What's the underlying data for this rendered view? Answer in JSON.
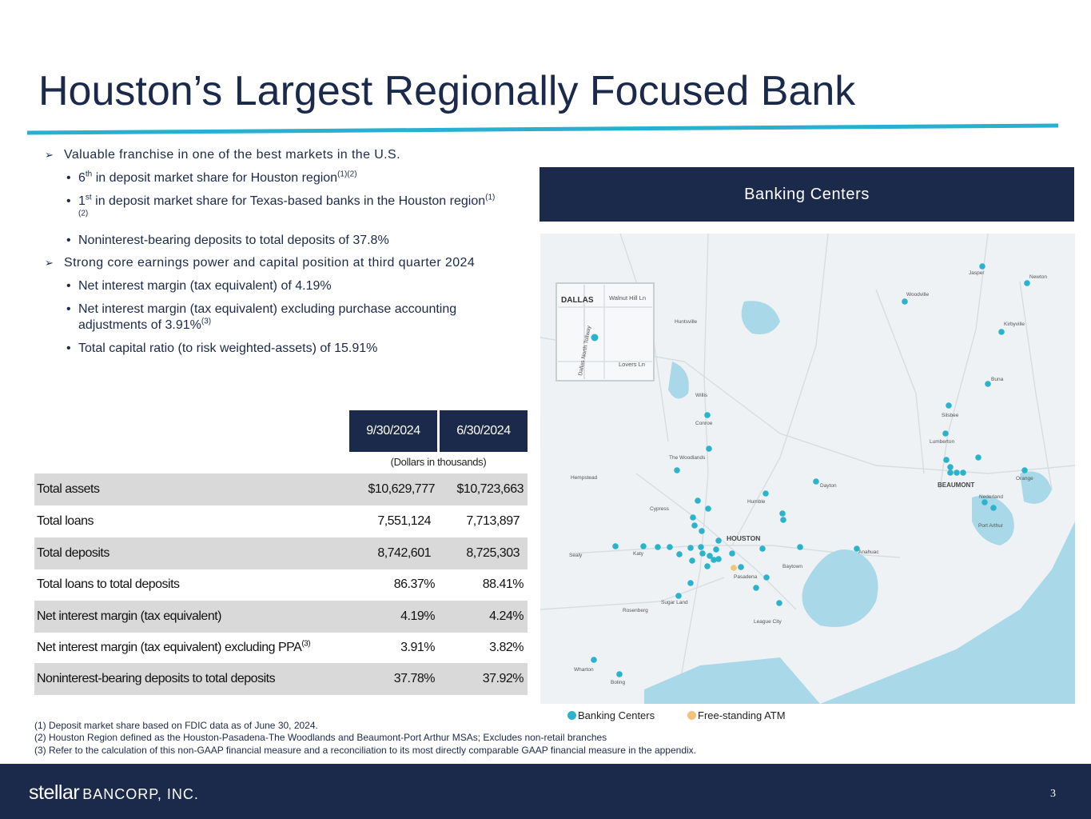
{
  "title": "Houston’s Largest Regionally Focused Bank",
  "bullets": [
    {
      "text": "Valuable franchise in one of the best markets in the U.S.",
      "subs": [
        {
          "pre": "6",
          "presup": "th",
          "text": " in deposit market share for Houston region",
          "sup": "(1)(2)"
        },
        {
          "pre": "1",
          "presup": "st",
          "text": " in deposit market share for Texas-based banks in the Houston region",
          "sup": "(1)(2)"
        },
        {
          "pre": "",
          "presup": "",
          "text": "Noninterest-bearing deposits to total deposits of 37.8%",
          "sup": ""
        }
      ]
    },
    {
      "text": "Strong core earnings power and capital position at third quarter 2024",
      "subs": [
        {
          "pre": "",
          "presup": "",
          "text": "Net interest margin (tax equivalent) of 4.19%",
          "sup": ""
        },
        {
          "pre": "",
          "presup": "",
          "text": "Net interest margin (tax equivalent) excluding purchase accounting adjustments of 3.91%",
          "sup": "(3)"
        },
        {
          "pre": "",
          "presup": "",
          "text": "Total capital ratio (to risk weighted-assets) of 15.91%",
          "sup": ""
        }
      ]
    }
  ],
  "table": {
    "col1": "9/30/2024",
    "col2": "6/30/2024",
    "note": "(Dollars in thousands)",
    "rows": [
      {
        "label": "Total assets",
        "sup": "",
        "v1": "$10,629,777",
        "v2": "$10,723,663"
      },
      {
        "label": "Total loans",
        "sup": "",
        "v1": "7,551,124",
        "v2": "7,713,897"
      },
      {
        "label": "Total deposits",
        "sup": "",
        "v1": "8,742,601",
        "v2": "8,725,303"
      },
      {
        "label": "Total loans to total deposits",
        "sup": "",
        "v1": "86.37%",
        "v2": "88.41%"
      },
      {
        "label": "Net interest margin (tax equivalent)",
        "sup": "",
        "v1": "4.19%",
        "v2": "4.24%"
      },
      {
        "label": "Net interest margin (tax equivalent) excluding PPA",
        "sup": "(3)",
        "v1": "3.91%",
        "v2": "3.82%"
      },
      {
        "label": "Noninterest-bearing deposits to total deposits",
        "sup": "",
        "v1": "37.78%",
        "v2": "37.92%"
      }
    ]
  },
  "map": {
    "banner": "Banking Centers",
    "inset": {
      "city": "DALLAS",
      "street1": "Walnut Hill Ln",
      "street2": "Lovers Ln",
      "street3": "Dallas North Tollway"
    },
    "labels": [
      "Jasper",
      "Newton",
      "Woodville",
      "Huntsville",
      "Kirbyville",
      "Buna",
      "Willis",
      "Conroe",
      "Silsbee",
      "Lumberton",
      "The Woodlands",
      "Hempstead",
      "Dayton",
      "BEAUMONT",
      "Orange",
      "Humble",
      "Nederland",
      "Cypress",
      "HOUSTON",
      "Port Arthur",
      "Sealy",
      "Katy",
      "Anahuac",
      "Baytown",
      "Pasadena",
      "Sugar Land",
      "Rosenberg",
      "League City",
      "Wharton",
      "Boling"
    ],
    "colors": {
      "branch": "#2bb3cc",
      "atm": "#f5c27a",
      "water": "#a9d8e8",
      "land": "#eef2f4",
      "navy": "#1b2a4a"
    }
  },
  "legend": {
    "branch": "Banking Centers",
    "atm": "Free-standing ATM"
  },
  "footnotes": [
    "(1) Deposit market share based on FDIC data as of June 30, 2024.",
    "(2) Houston Region defined as the Houston-Pasadena-The Woodlands and Beaumont-Port Arthur MSAs; Excludes non-retail branches",
    "(3) Refer to the calculation of this non-GAAP financial measure and a reconciliation to its most directly comparable GAAP financial measure in the appendix."
  ],
  "footer": {
    "logo_word1": "stellar",
    "logo_word2": "BANCORP, INC.",
    "page": "3"
  }
}
